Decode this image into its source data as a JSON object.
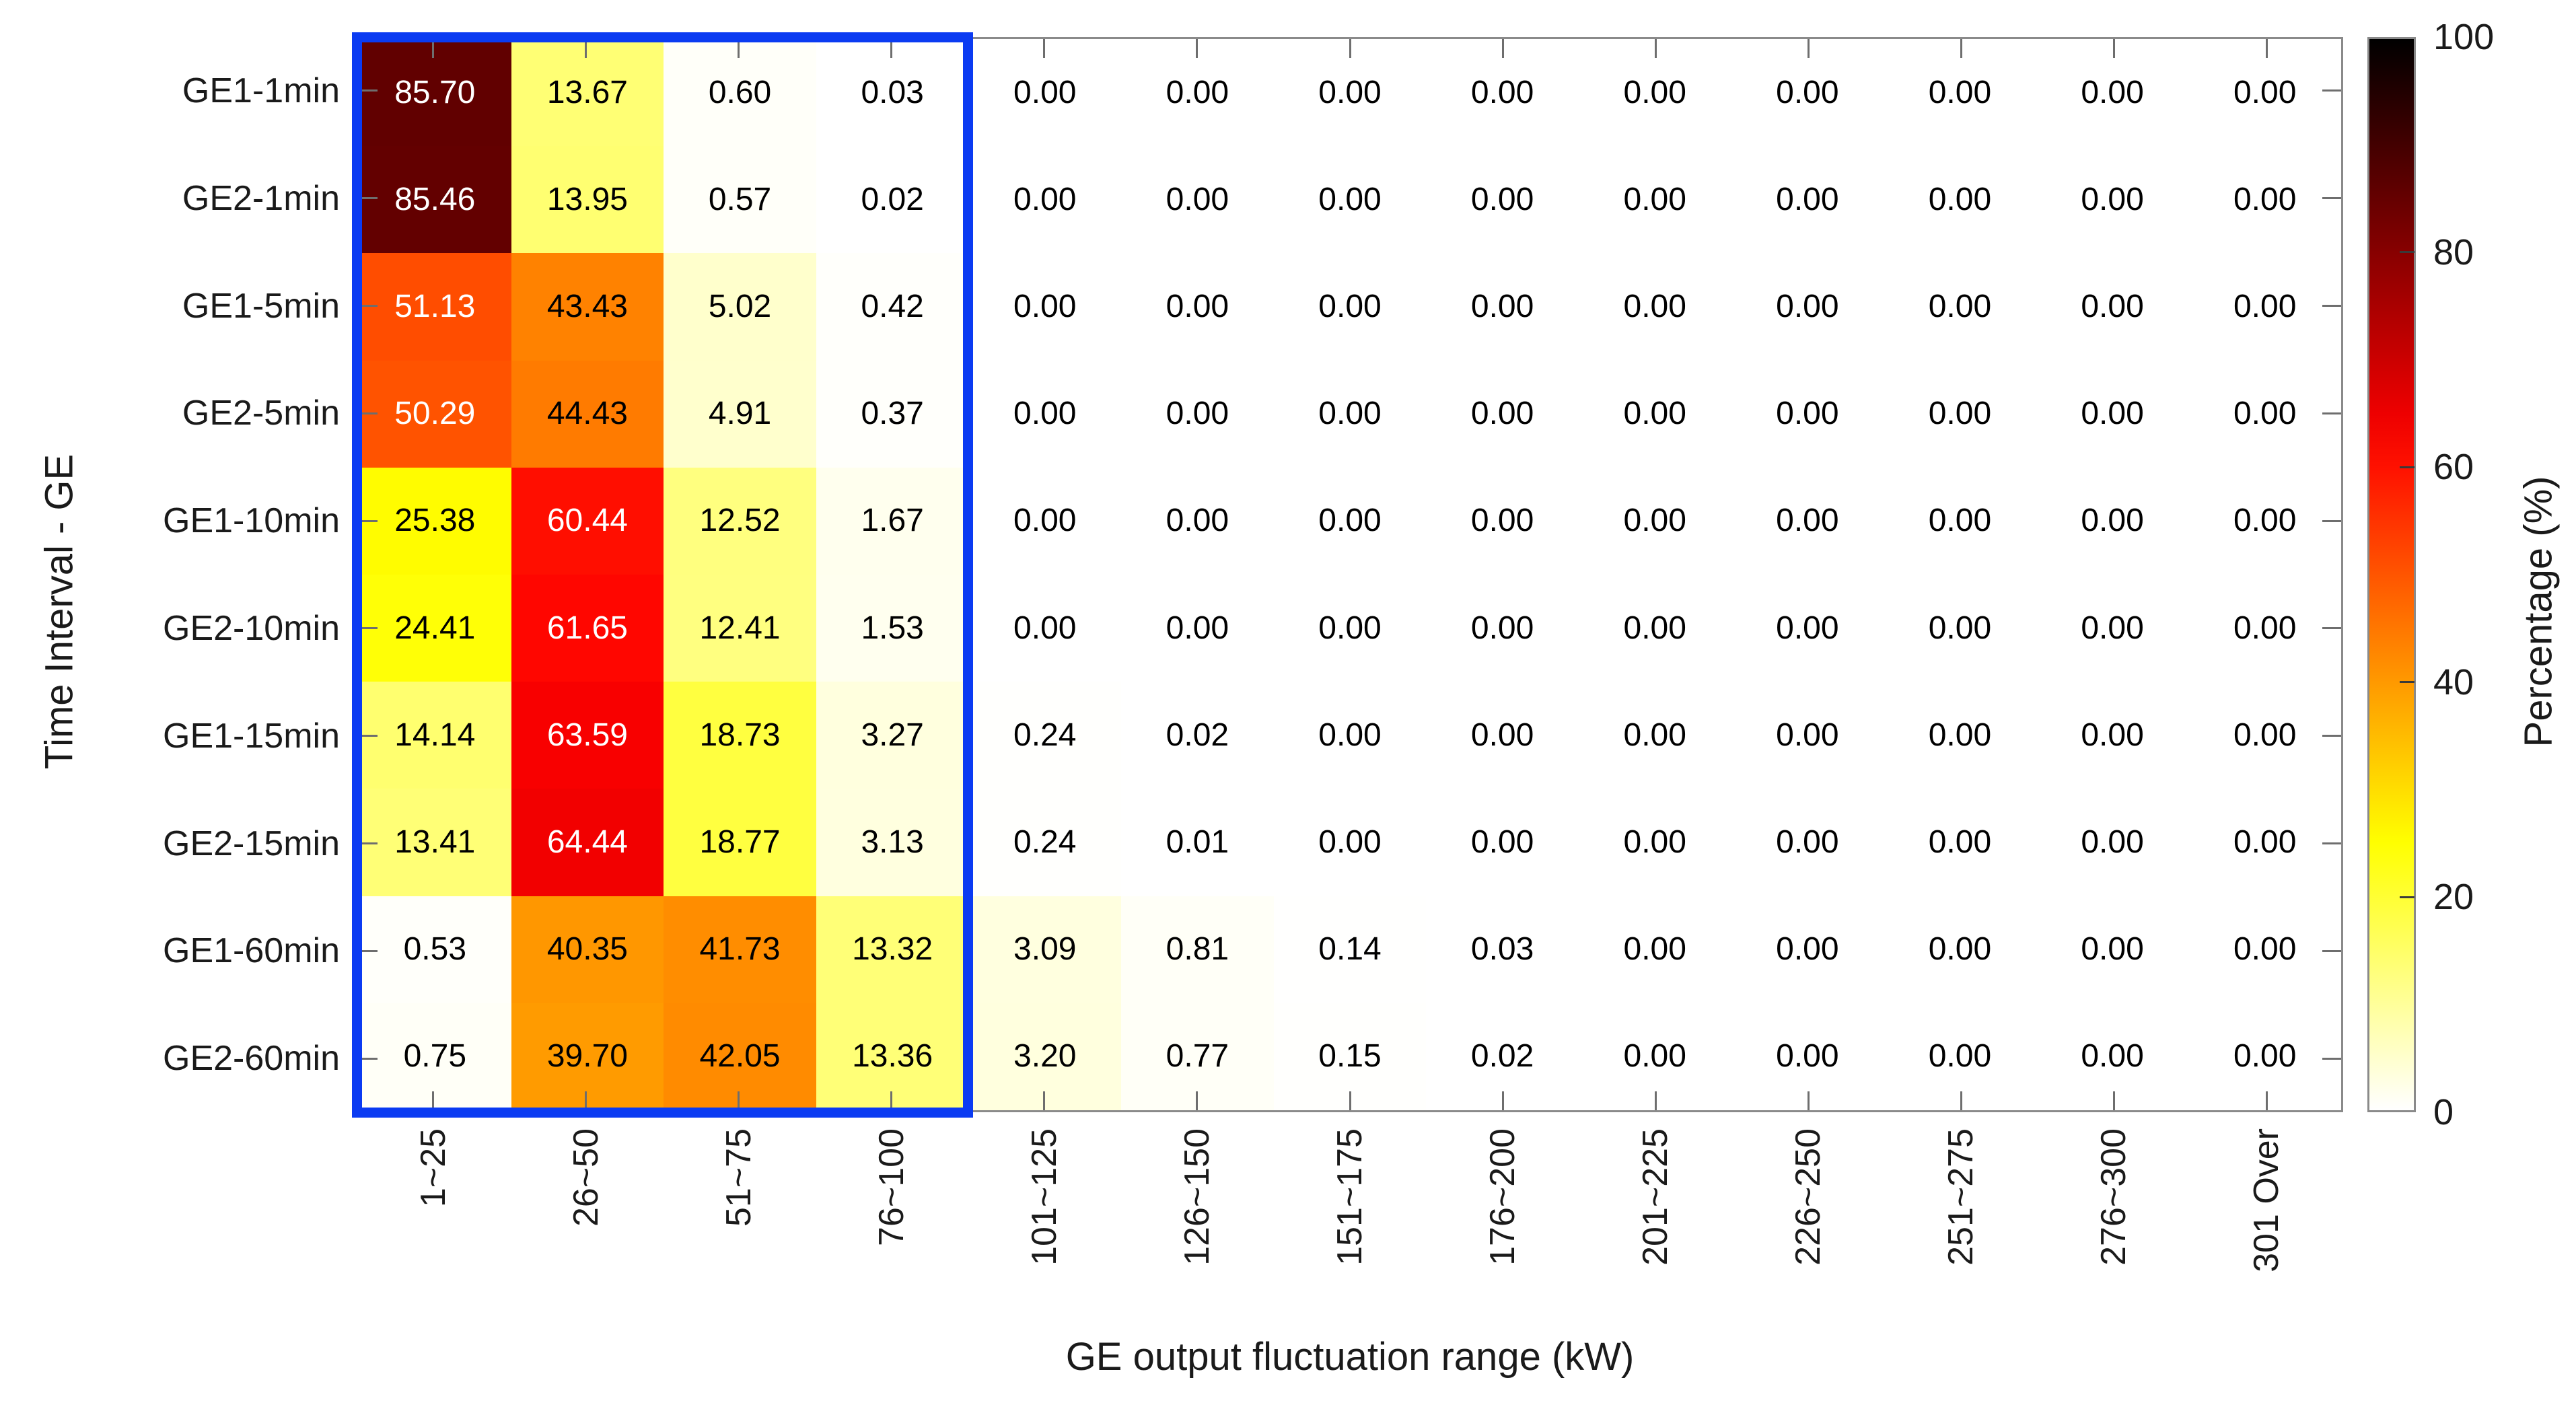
{
  "chart_data": {
    "type": "heatmap",
    "title": "",
    "xlabel": "GE output fluctuation range (kW)",
    "ylabel": "Time Interval - GE",
    "categories": [
      "1~25",
      "26~50",
      "51~75",
      "76~100",
      "101~125",
      "126~150",
      "151~175",
      "176~200",
      "201~225",
      "226~250",
      "251~275",
      "276~300",
      "301 Over"
    ],
    "rows": [
      "GE1-1min",
      "GE2-1min",
      "GE1-5min",
      "GE2-5min",
      "GE1-10min",
      "GE2-10min",
      "GE1-15min",
      "GE2-15min",
      "GE1-60min",
      "GE2-60min"
    ],
    "values": [
      [
        85.7,
        13.67,
        0.6,
        0.03,
        0.0,
        0.0,
        0.0,
        0.0,
        0.0,
        0.0,
        0.0,
        0.0,
        0.0
      ],
      [
        85.46,
        13.95,
        0.57,
        0.02,
        0.0,
        0.0,
        0.0,
        0.0,
        0.0,
        0.0,
        0.0,
        0.0,
        0.0
      ],
      [
        51.13,
        43.43,
        5.02,
        0.42,
        0.0,
        0.0,
        0.0,
        0.0,
        0.0,
        0.0,
        0.0,
        0.0,
        0.0
      ],
      [
        50.29,
        44.43,
        4.91,
        0.37,
        0.0,
        0.0,
        0.0,
        0.0,
        0.0,
        0.0,
        0.0,
        0.0,
        0.0
      ],
      [
        25.38,
        60.44,
        12.52,
        1.67,
        0.0,
        0.0,
        0.0,
        0.0,
        0.0,
        0.0,
        0.0,
        0.0,
        0.0
      ],
      [
        24.41,
        61.65,
        12.41,
        1.53,
        0.0,
        0.0,
        0.0,
        0.0,
        0.0,
        0.0,
        0.0,
        0.0,
        0.0
      ],
      [
        14.14,
        63.59,
        18.73,
        3.27,
        0.24,
        0.02,
        0.0,
        0.0,
        0.0,
        0.0,
        0.0,
        0.0,
        0.0
      ],
      [
        13.41,
        64.44,
        18.77,
        3.13,
        0.24,
        0.01,
        0.0,
        0.0,
        0.0,
        0.0,
        0.0,
        0.0,
        0.0
      ],
      [
        0.53,
        40.35,
        41.73,
        13.32,
        3.09,
        0.81,
        0.14,
        0.03,
        0.0,
        0.0,
        0.0,
        0.0,
        0.0
      ],
      [
        0.75,
        39.7,
        42.05,
        13.36,
        3.2,
        0.77,
        0.15,
        0.02,
        0.0,
        0.0,
        0.0,
        0.0,
        0.0
      ]
    ],
    "cell_value_format": "two-decimals",
    "value_range": [
      0,
      100
    ],
    "colormap": "reversed-hot (white -> yellow -> orange -> red -> dark red -> black)",
    "colorbar": {
      "label": "Percentage (%)",
      "ticks": [
        0,
        20,
        40,
        60,
        80,
        100
      ],
      "range": [
        0,
        100
      ],
      "position": "right"
    },
    "highlight_box": {
      "columns_covered": [
        "1~25",
        "26~50",
        "51~75",
        "76~100"
      ],
      "col_start_index": 0,
      "col_end_index": 3,
      "color": "#0b3bf2"
    },
    "grid": "off",
    "tick_direction": "in",
    "colors": {
      "axis_box": "#8a8a8a",
      "tick": "#6e6e6e",
      "label_text": "#1a1a1a",
      "cell_text_dark": "#000000",
      "cell_text_light": "#ffffff",
      "highlight": "#0b3bf2"
    }
  }
}
